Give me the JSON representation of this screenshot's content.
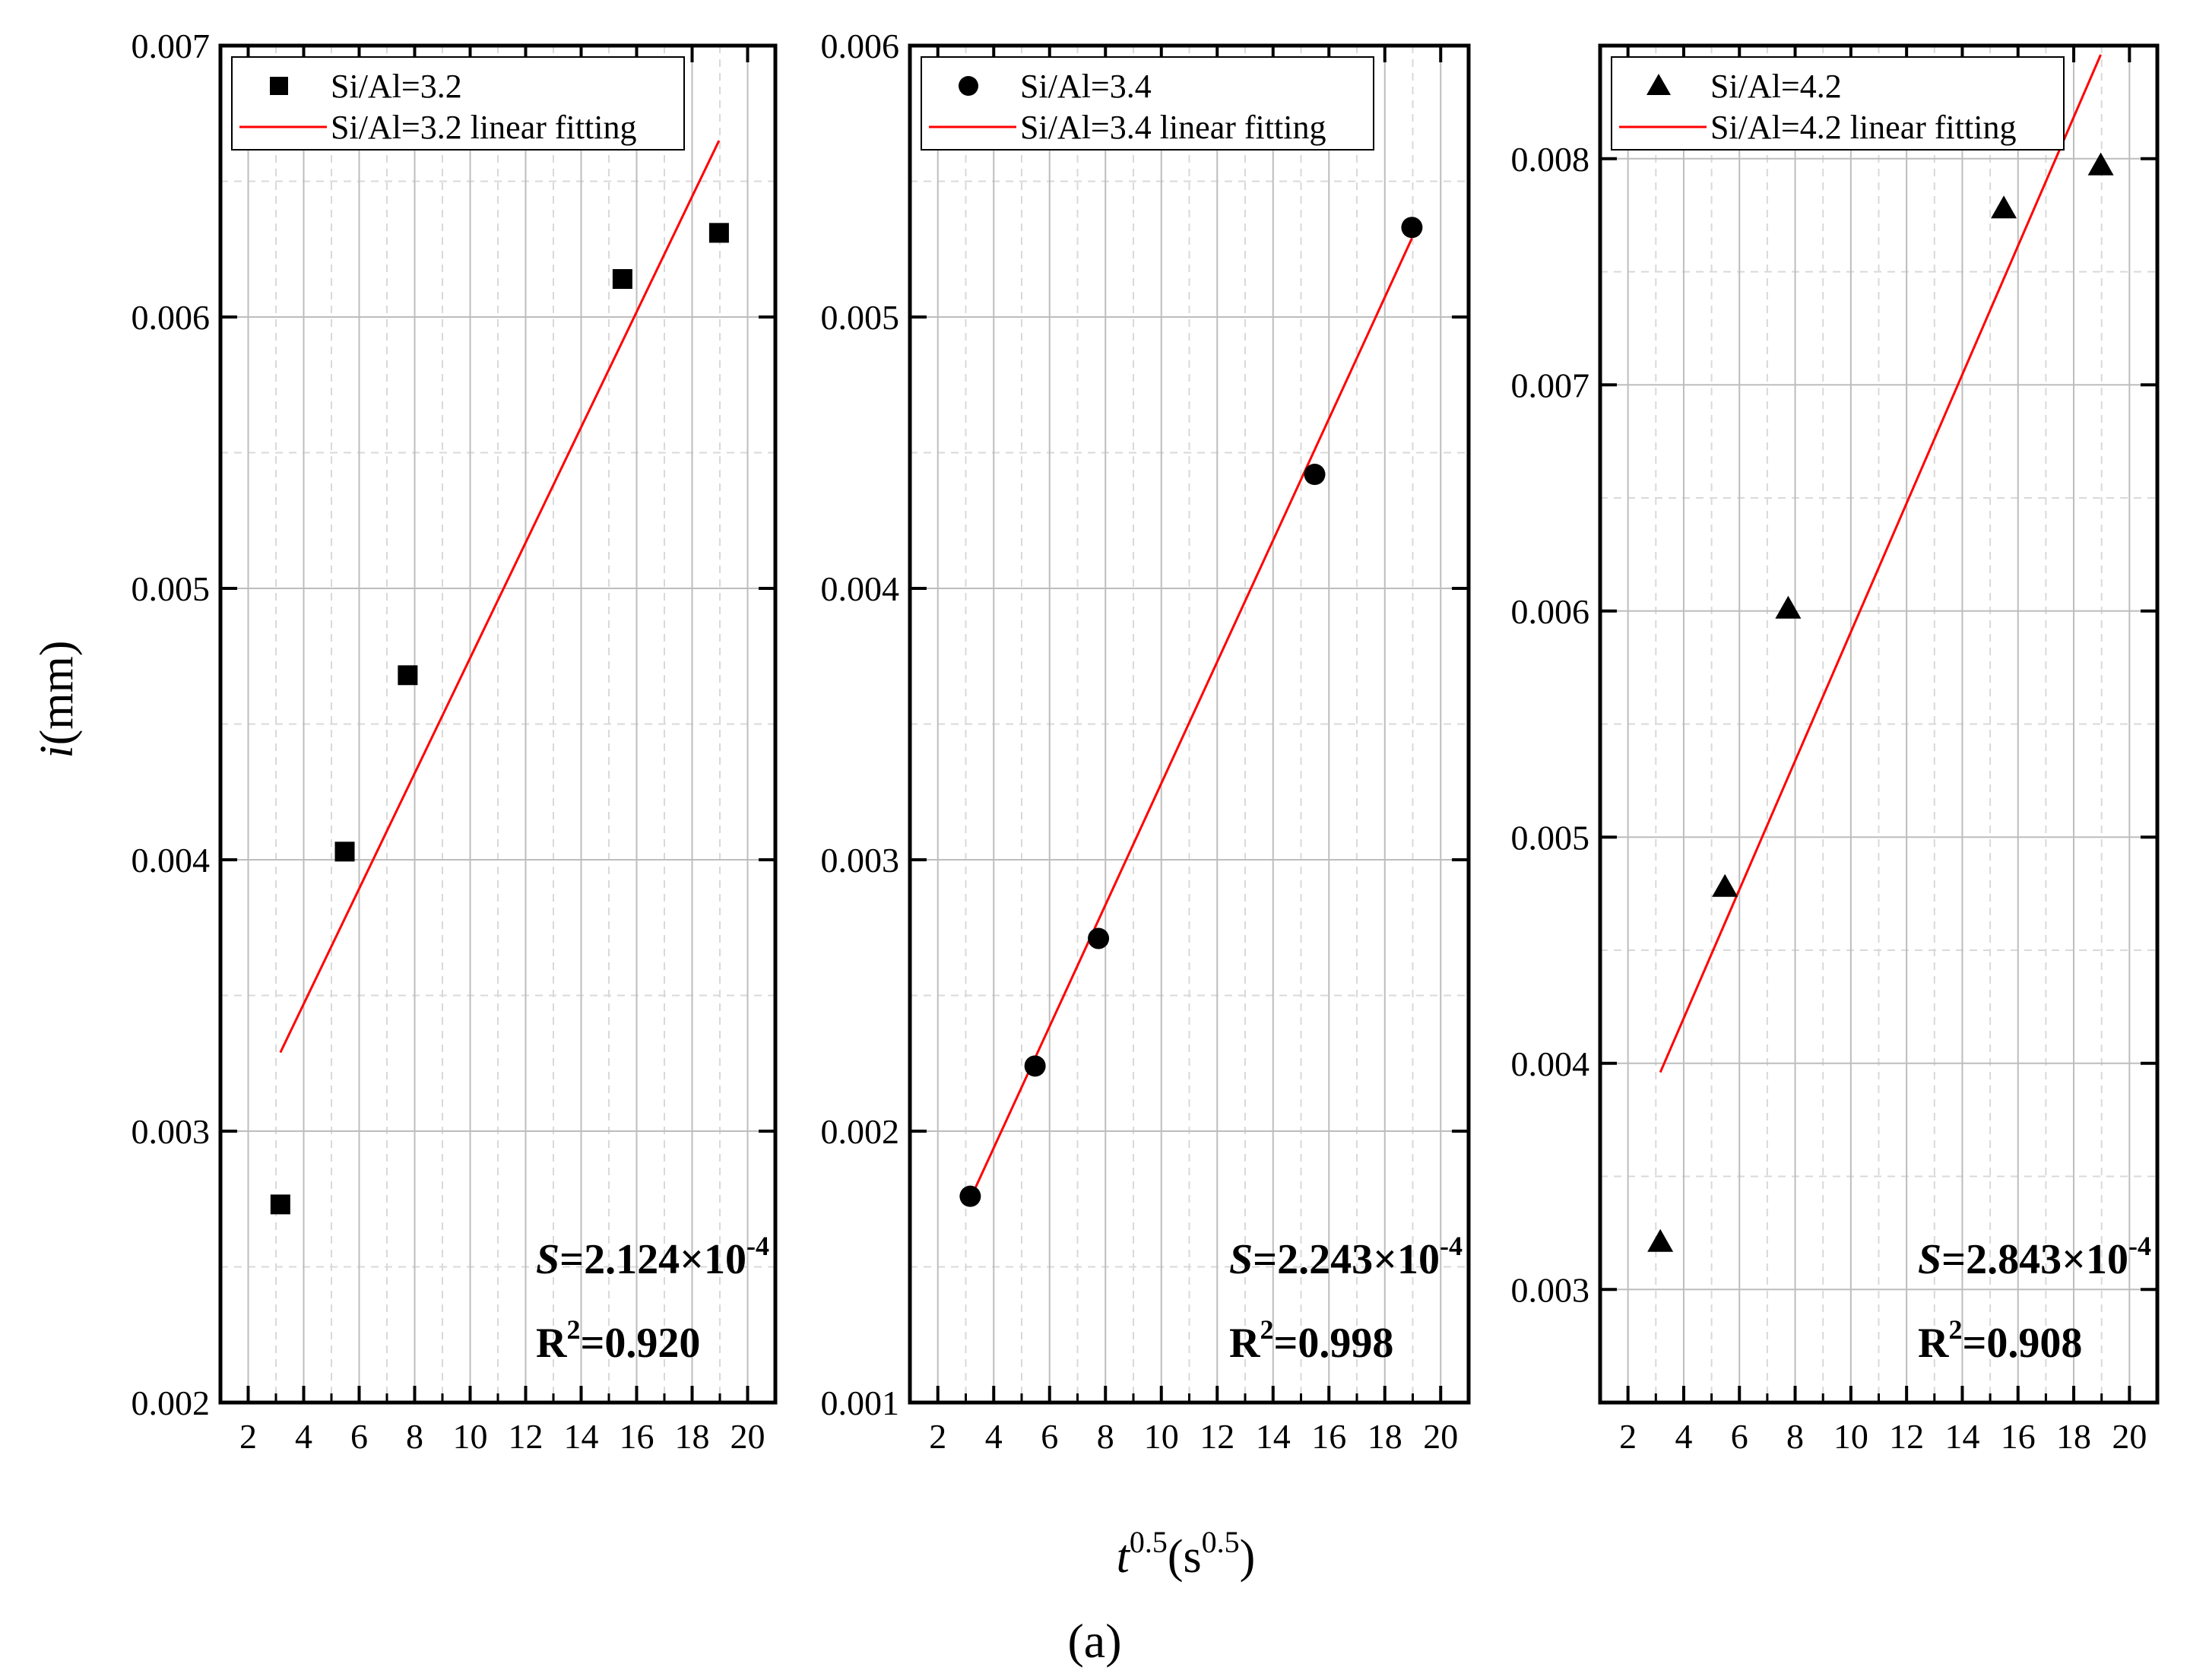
{
  "figure_label": "(a)",
  "shared": {
    "xlabel": {
      "main": "t",
      "sup": "0.5",
      "unit_open": "(s",
      "unit_sup": "0.5",
      "unit_close": ")"
    },
    "ylabel": {
      "main": "i",
      "unit": "(mm)"
    }
  },
  "chart_data": [
    {
      "type": "scatter",
      "marker": "square",
      "x": [
        3.16,
        5.48,
        7.75,
        15.49,
        18.97
      ],
      "y": [
        0.00273,
        0.00403,
        0.00468,
        0.00614,
        0.00631
      ],
      "fit": {
        "x": [
          3.16,
          18.97
        ],
        "y": [
          0.00329,
          0.00665
        ]
      },
      "xlim": [
        1,
        21
      ],
      "ylim": [
        0.002,
        0.007
      ],
      "xticks": [
        "2",
        "4",
        "6",
        "8",
        "10",
        "12",
        "14",
        "16",
        "18",
        "20"
      ],
      "yticks": [
        "0.002",
        "0.003",
        "0.004",
        "0.005",
        "0.006",
        "0.007"
      ],
      "legend": [
        "Si/Al=3.2",
        "Si/Al=3.2 linear fitting"
      ],
      "legend_position": "top-left",
      "annotation": {
        "s_label": "S",
        "s_value": "=2.124×10",
        "s_exp": "-4",
        "r_label": "R",
        "r_sup": "2",
        "r_value": "=0.920"
      },
      "colors": {
        "points": "#000000",
        "fit": "#ff0000"
      }
    },
    {
      "type": "scatter",
      "marker": "circle",
      "x": [
        3.16,
        5.48,
        7.75,
        15.49,
        18.97
      ],
      "y": [
        0.00176,
        0.00224,
        0.00271,
        0.00442,
        0.00533
      ],
      "fit": {
        "x": [
          3.16,
          18.97
        ],
        "y": [
          0.00175,
          0.00529
        ]
      },
      "xlim": [
        1,
        21
      ],
      "ylim": [
        0.001,
        0.006
      ],
      "xticks": [
        "2",
        "4",
        "6",
        "8",
        "10",
        "12",
        "14",
        "16",
        "18",
        "20"
      ],
      "yticks": [
        "0.001",
        "0.002",
        "0.003",
        "0.004",
        "0.005",
        "0.006"
      ],
      "legend": [
        "Si/Al=3.4",
        "Si/Al=3.4 linear fitting"
      ],
      "legend_position": "top-left",
      "annotation": {
        "s_label": "S",
        "s_value": "=2.243×10",
        "s_exp": "-4",
        "r_label": "R",
        "r_sup": "2",
        "r_value": "=0.998"
      },
      "colors": {
        "points": "#000000",
        "fit": "#ff0000"
      }
    },
    {
      "type": "scatter",
      "marker": "triangle",
      "x": [
        3.16,
        5.48,
        7.75,
        15.49,
        18.97
      ],
      "y": [
        0.00321,
        0.00478,
        0.00601,
        0.00778,
        0.00797
      ],
      "fit": {
        "x": [
          3.16,
          18.97
        ],
        "y": [
          0.00396,
          0.00846
        ]
      },
      "xlim": [
        1,
        21
      ],
      "ylim": [
        0.0025,
        0.0085
      ],
      "xticks": [
        "2",
        "4",
        "6",
        "8",
        "10",
        "12",
        "14",
        "16",
        "18",
        "20"
      ],
      "yticks": [
        "0.003",
        "0.004",
        "0.005",
        "0.006",
        "0.007",
        "0.008"
      ],
      "legend": [
        "Si/Al=4.2",
        "Si/Al=4.2 linear fitting"
      ],
      "legend_position": "top-left",
      "annotation": {
        "s_label": "S",
        "s_value": "=2.843×10",
        "s_exp": "-4",
        "r_label": "R",
        "r_sup": "2",
        "r_value": "=0.908"
      },
      "colors": {
        "points": "#000000",
        "fit": "#ff0000"
      }
    }
  ]
}
